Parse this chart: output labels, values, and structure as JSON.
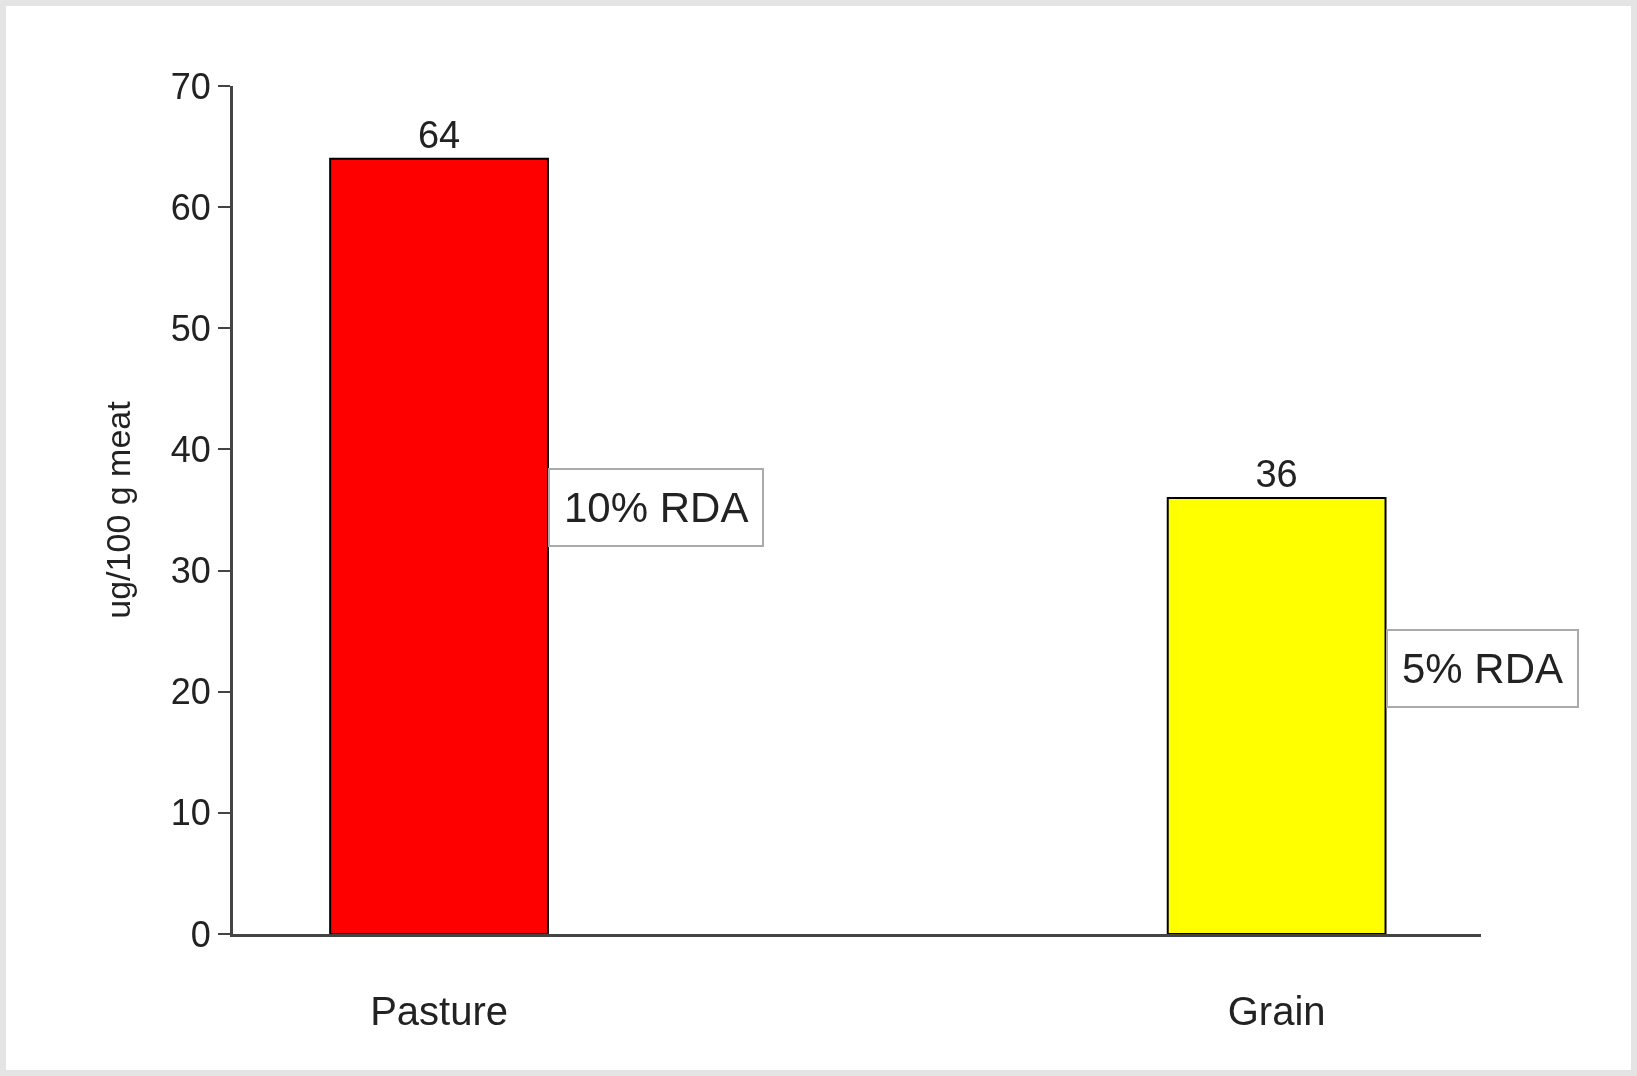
{
  "chart_data": {
    "type": "bar",
    "categories": [
      "Pasture",
      "Grain"
    ],
    "values": [
      64,
      36
    ],
    "colors": [
      "#ff0000",
      "#ffff00"
    ],
    "ylabel": "ug/100 g meat",
    "ylim": [
      0,
      70
    ],
    "yticks": [
      0,
      10,
      20,
      30,
      40,
      50,
      60,
      70
    ],
    "data_labels": true,
    "grid": false,
    "annotations": [
      "10% RDA",
      "5% RDA"
    ]
  }
}
